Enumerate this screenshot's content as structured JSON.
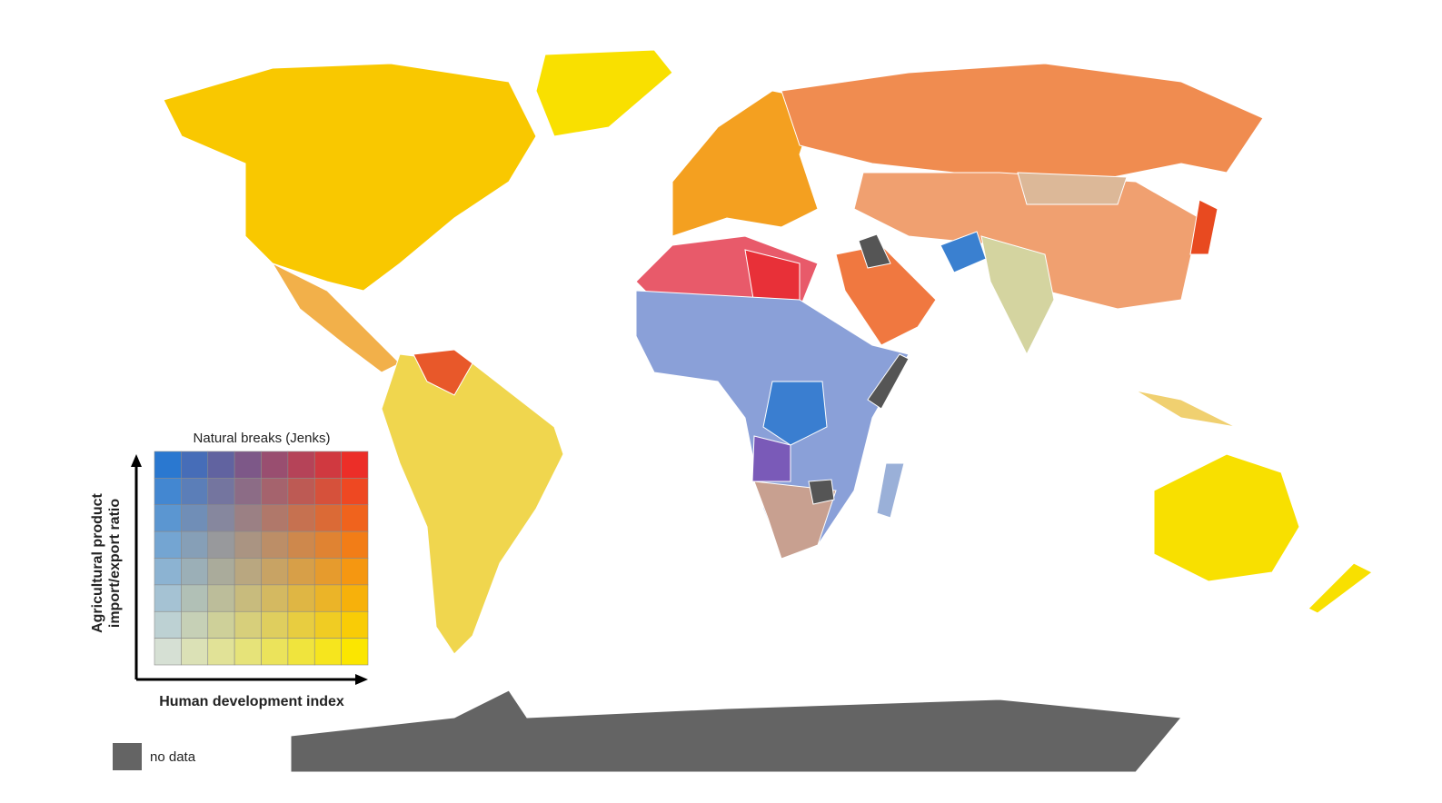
{
  "legend": {
    "title": "Natural breaks (Jenks)",
    "y_label": [
      "Agricultural product",
      "import/export ratio"
    ],
    "x_label": "Human development index",
    "corner_colors": {
      "top_left": "#2a78d0",
      "top_right": "#ec2e28",
      "bottom_left": "#d6e0d4",
      "bottom_right": "#fbe600"
    }
  },
  "no_data": {
    "label": "no data",
    "color": "#646464"
  }
}
